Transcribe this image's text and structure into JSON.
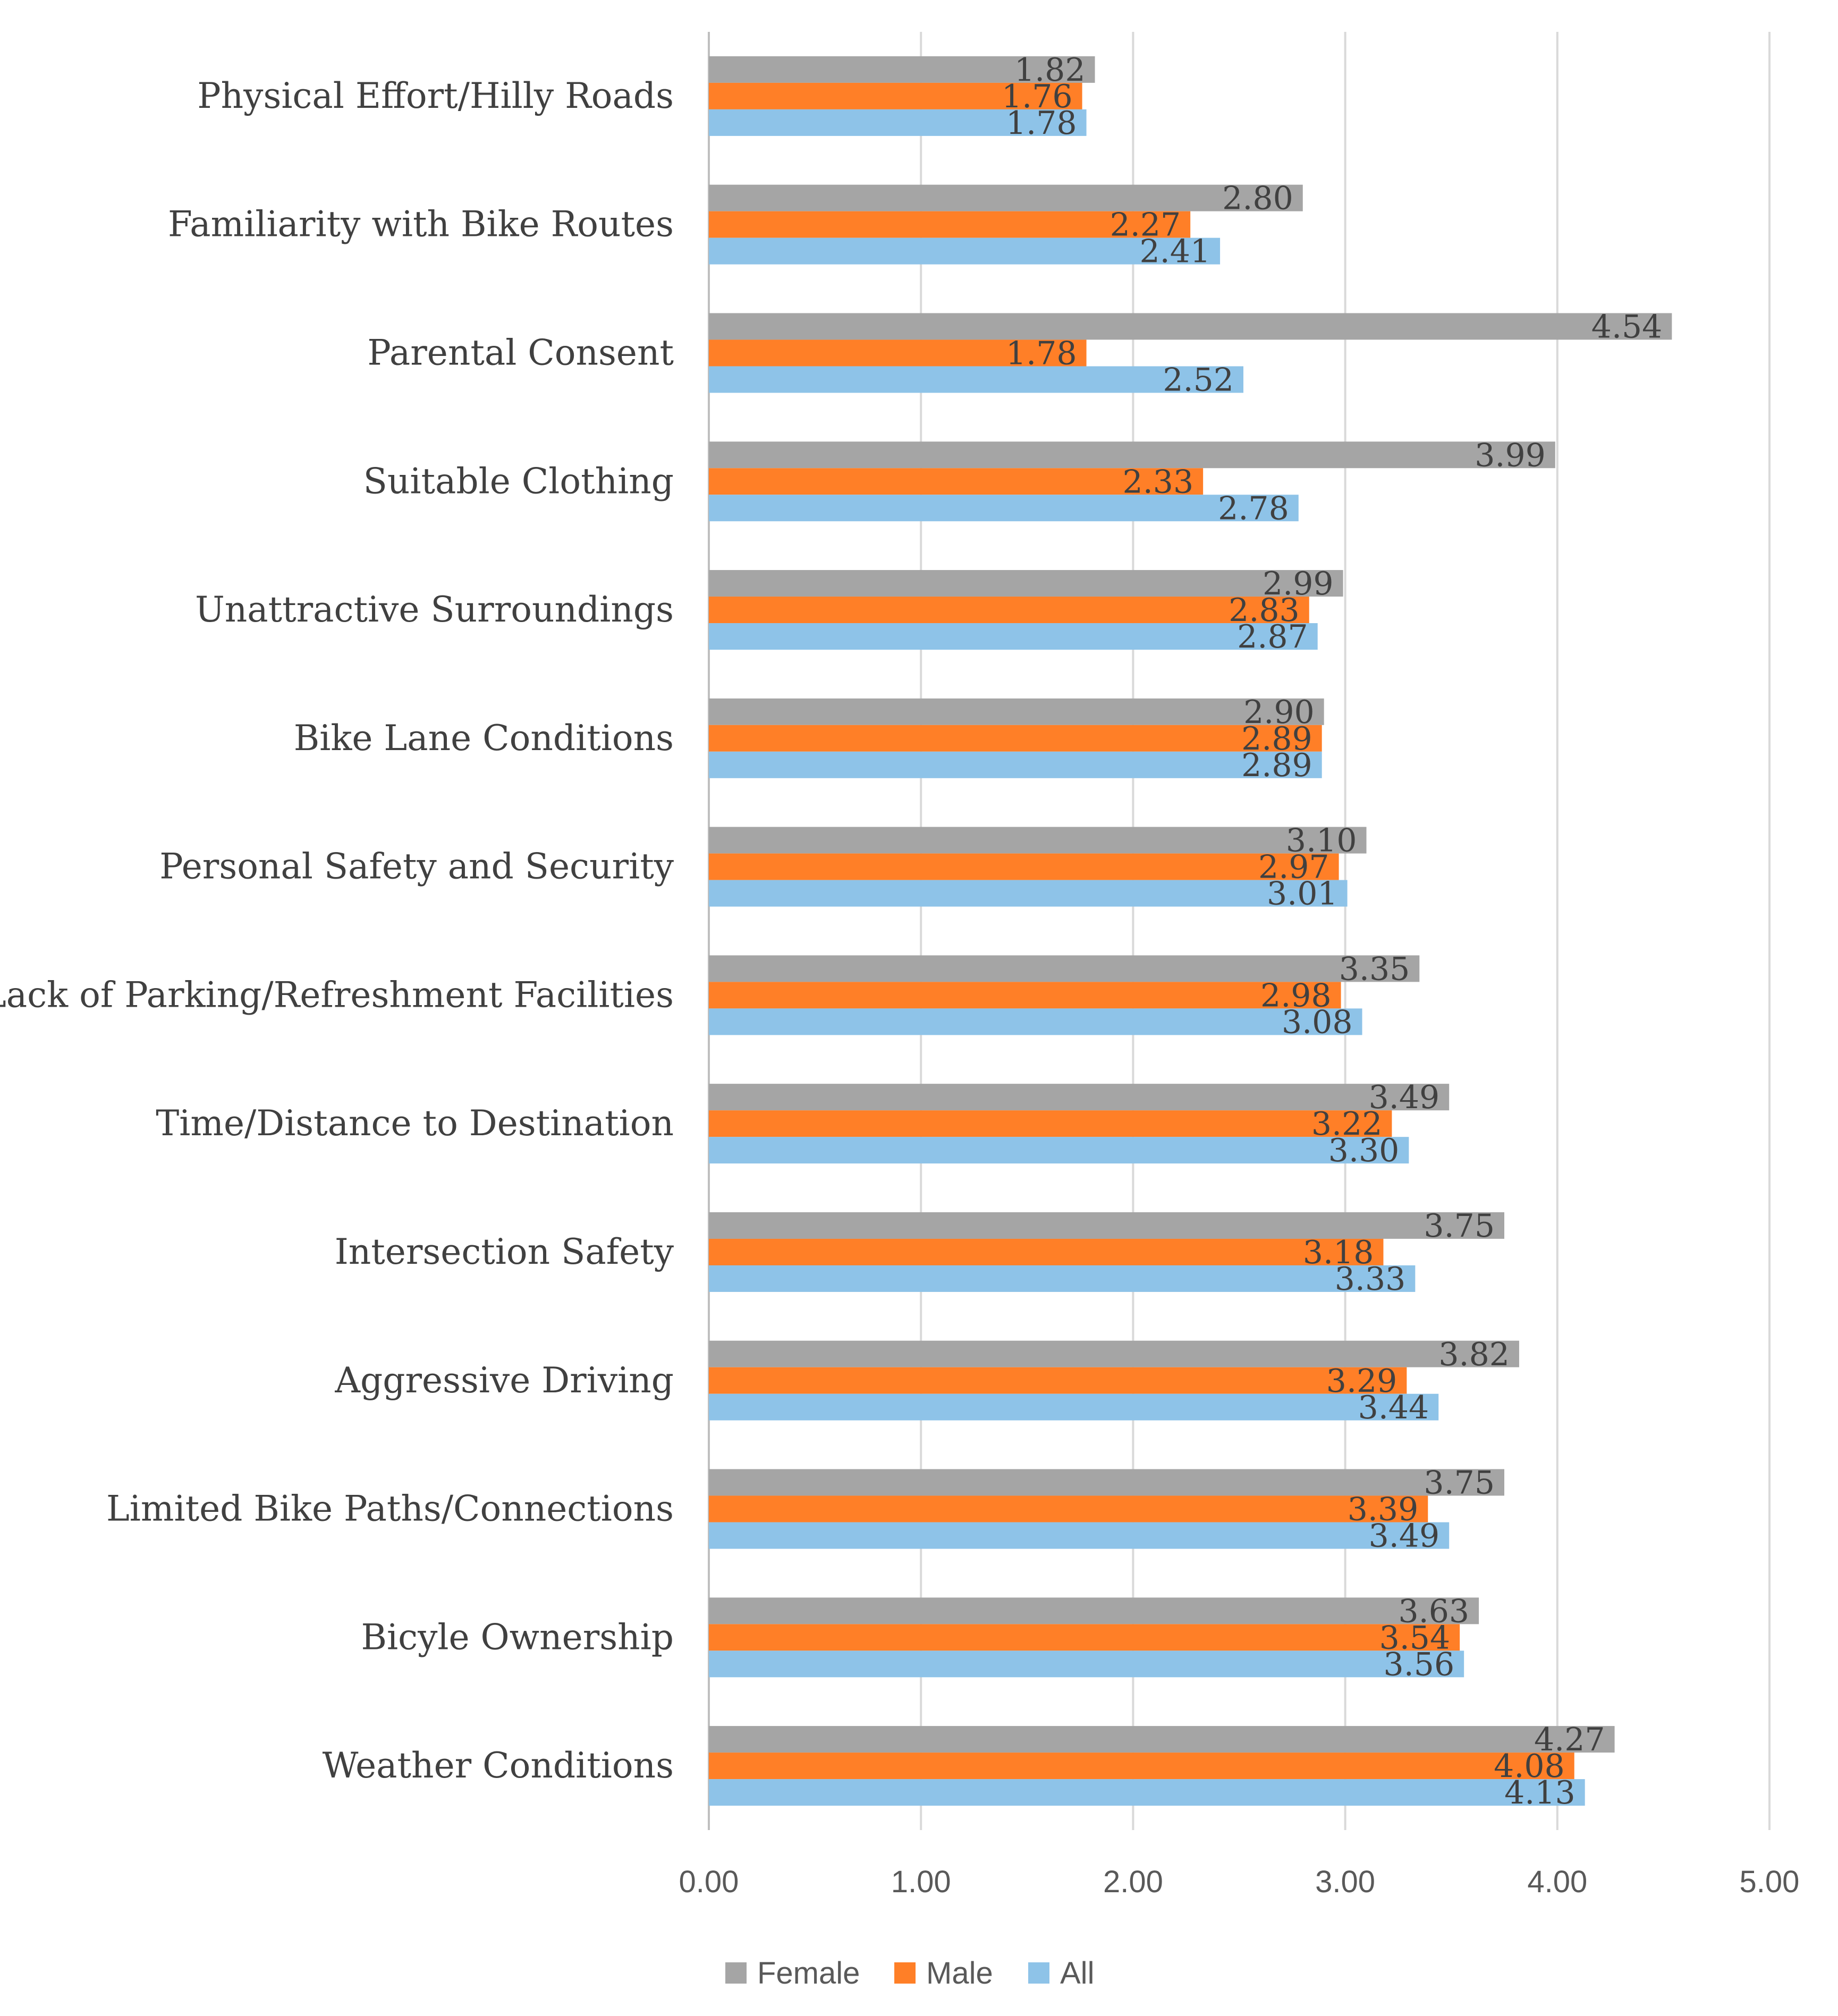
{
  "chart_data": {
    "type": "bar",
    "orientation": "horizontal",
    "title": "",
    "xlabel": "",
    "ylabel": "",
    "xlim": [
      0,
      5
    ],
    "grid": true,
    "legend_position": "bottom",
    "ticks": [
      "0.00",
      "1.00",
      "2.00",
      "3.00",
      "4.00",
      "5.00"
    ],
    "categories": [
      "Physical Effort/Hilly Roads",
      "Familiarity with Bike Routes",
      "Parental Consent",
      "Suitable Clothing",
      "Unattractive Surroundings",
      "Bike Lane Conditions",
      "Personal Safety and Security",
      "Lack of Parking/Refreshment Facilities",
      "Time/Distance to Destination",
      "Intersection Safety",
      "Aggressive Driving",
      "Limited Bike Paths/Connections",
      "Bicyle Ownership",
      "Weather Conditions"
    ],
    "series": [
      {
        "name": "Female",
        "color": "#a5a5a5",
        "values": [
          1.82,
          2.8,
          4.54,
          3.99,
          2.99,
          2.9,
          3.1,
          3.35,
          3.49,
          3.75,
          3.82,
          3.75,
          3.63,
          4.27
        ],
        "labels": [
          "1.82",
          "2.80",
          "4.54",
          "3.99",
          "2.99",
          "2.90",
          "3.10",
          "3.35",
          "3.49",
          "3.75",
          "3.82",
          "3.75",
          "3.63",
          "4.27"
        ]
      },
      {
        "name": "Male",
        "color": "#ff7f27",
        "values": [
          1.76,
          2.27,
          1.78,
          2.33,
          2.83,
          2.89,
          2.97,
          2.98,
          3.22,
          3.18,
          3.29,
          3.39,
          3.54,
          4.08
        ],
        "labels": [
          "1.76",
          "2.27",
          "1.78",
          "2.33",
          "2.83",
          "2.89",
          "2.97",
          "2.98",
          "3.22",
          "3.18",
          "3.29",
          "3.39",
          "3.54",
          "4.08"
        ]
      },
      {
        "name": "All",
        "color": "#8ec3e8",
        "values": [
          1.78,
          2.41,
          2.52,
          2.78,
          2.87,
          2.89,
          3.01,
          3.08,
          3.3,
          3.33,
          3.44,
          3.49,
          3.56,
          4.13
        ],
        "labels": [
          "1.78",
          "2.41",
          "2.52",
          "2.78",
          "2.87",
          "2.89",
          "3.01",
          "3.08",
          "3.30",
          "3.33",
          "3.44",
          "3.49",
          "3.56",
          "4.13"
        ]
      }
    ]
  }
}
